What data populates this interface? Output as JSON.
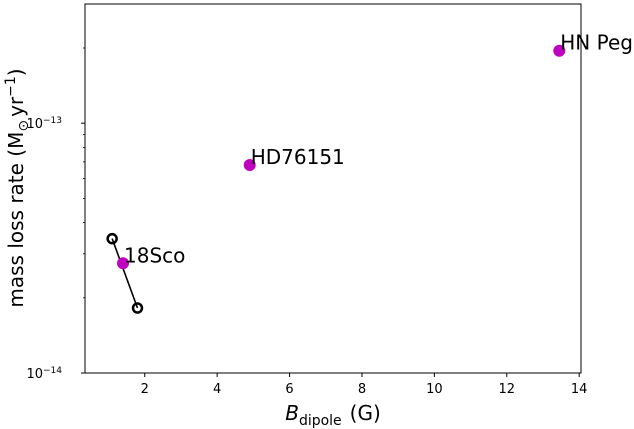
{
  "chart_data": {
    "type": "scatter",
    "xlabel": {
      "main": "B",
      "sub": "dipole",
      "unit": "(G)"
    },
    "ylabel": {
      "main": "mass loss rate (M",
      "sun": "⊙",
      "unit": "yr",
      "exp": "−1",
      "close": ")"
    },
    "xlim": [
      0.35,
      14.05
    ],
    "ylim": [
      1e-14,
      3e-13
    ],
    "xscale": "linear",
    "yscale": "log",
    "x_ticks": [
      {
        "value": 2,
        "label": "2"
      },
      {
        "value": 4,
        "label": "4"
      },
      {
        "value": 6,
        "label": "6"
      },
      {
        "value": 8,
        "label": "8"
      },
      {
        "value": 10,
        "label": "10"
      },
      {
        "value": 12,
        "label": "12"
      },
      {
        "value": 14,
        "label": "14"
      }
    ],
    "y_ticks": [
      {
        "value": 1e-14,
        "base": "10",
        "exp": "−14"
      },
      {
        "value": 1e-13,
        "base": "10",
        "exp": "−13"
      }
    ],
    "grid": false,
    "legend": false,
    "points": [
      {
        "label": "18Sco",
        "x": 1.4,
        "y": 2.75e-14
      },
      {
        "label": "HD76151",
        "x": 4.9,
        "y": 6.8e-14
      },
      {
        "label": "HN Peg",
        "x": 13.45,
        "y": 1.95e-13
      }
    ],
    "range_line": [
      {
        "x": 1.1,
        "y": 3.45e-14
      },
      {
        "x": 1.8,
        "y": 1.82e-14
      }
    ],
    "colors": {
      "points": "#bf00bf",
      "range": "#000000"
    }
  }
}
